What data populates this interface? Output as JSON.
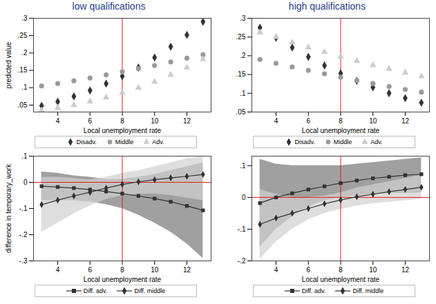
{
  "chart_data": [
    {
      "type": "scatter",
      "title": "low qualifications",
      "x_label": "Local unemployment rate",
      "y_label": "predicted value",
      "xlim": [
        2.5,
        13.5
      ],
      "xticks": [
        4,
        6,
        8,
        10,
        12
      ],
      "ylim": [
        0.03,
        0.3
      ],
      "yticks": [
        {
          "value": 0.05,
          "label": ".05"
        },
        {
          "value": 0.1,
          "label": ".1"
        },
        {
          "value": 0.15,
          "label": ".15"
        },
        {
          "value": 0.2,
          "label": ".2"
        },
        {
          "value": 0.25,
          "label": ".25"
        },
        {
          "value": 0.3,
          "label": ".3"
        }
      ],
      "vline": 8,
      "x": [
        3,
        4,
        5,
        6,
        7,
        8,
        9,
        10,
        11,
        12,
        13
      ],
      "series": [
        {
          "name": "Disadv.",
          "color": "#333333",
          "marker": "diamond",
          "values": [
            0.048,
            0.06,
            0.075,
            0.092,
            0.112,
            0.133,
            0.158,
            0.187,
            0.218,
            0.252,
            0.29
          ]
        },
        {
          "name": "Middle",
          "color": "#9a9a9a",
          "marker": "circle",
          "values": [
            0.105,
            0.112,
            0.12,
            0.128,
            0.137,
            0.146,
            0.155,
            0.164,
            0.174,
            0.185,
            0.195
          ]
        },
        {
          "name": "Adv.",
          "color": "#cccccc",
          "marker": "triangle",
          "values": [
            0.035,
            0.042,
            0.05,
            0.06,
            0.072,
            0.085,
            0.1,
            0.117,
            0.137,
            0.158,
            0.182
          ]
        }
      ]
    },
    {
      "type": "scatter",
      "title": "high qualifications",
      "x_label": "Local unemployment rate",
      "xlim": [
        2.5,
        13.5
      ],
      "xticks": [
        4,
        6,
        8,
        10,
        12
      ],
      "ylim": [
        0.05,
        0.3
      ],
      "yticks": [
        {
          "value": 0.05,
          "label": ".05"
        },
        {
          "value": 0.1,
          "label": ".1"
        },
        {
          "value": 0.15,
          "label": ".15"
        },
        {
          "value": 0.2,
          "label": ".2"
        },
        {
          "value": 0.25,
          "label": ".25"
        },
        {
          "value": 0.3,
          "label": ".3"
        }
      ],
      "vline": 8,
      "x": [
        3,
        4,
        5,
        6,
        7,
        8,
        9,
        10,
        11,
        12,
        13
      ],
      "series": [
        {
          "name": "Disadv.",
          "color": "#333333",
          "marker": "diamond",
          "values": [
            0.275,
            0.248,
            0.222,
            0.197,
            0.174,
            0.153,
            0.133,
            0.116,
            0.1,
            0.087,
            0.075
          ]
        },
        {
          "name": "Middle",
          "color": "#9a9a9a",
          "marker": "circle",
          "values": [
            0.19,
            0.18,
            0.17,
            0.161,
            0.152,
            0.143,
            0.134,
            0.126,
            0.118,
            0.11,
            0.103
          ]
        },
        {
          "name": "Adv.",
          "color": "#cccccc",
          "marker": "triangle",
          "values": [
            0.262,
            0.25,
            0.236,
            0.222,
            0.21,
            0.197,
            0.186,
            0.175,
            0.165,
            0.155,
            0.145
          ]
        }
      ]
    },
    {
      "type": "line",
      "x_label": "Local unemployment rate",
      "y_label": "difference in temporary_work",
      "xlim": [
        2.5,
        13.5
      ],
      "xticks": [
        4,
        6,
        8,
        10,
        12
      ],
      "ylim": [
        -0.3,
        0.1
      ],
      "yticks": [
        {
          "value": -0.3,
          "label": "-.3"
        },
        {
          "value": -0.2,
          "label": "-.2"
        },
        {
          "value": -0.1,
          "label": "-.1"
        },
        0,
        {
          "value": 0.1,
          "label": ".1"
        }
      ],
      "vline": 8,
      "hline": 0,
      "x": [
        3,
        4,
        5,
        6,
        7,
        8,
        9,
        10,
        11,
        12,
        13
      ],
      "series": [
        {
          "name": "Diff. adv.",
          "color": "#333333",
          "marker": "square",
          "band_color": "#777777",
          "values": [
            -0.015,
            -0.018,
            -0.022,
            -0.028,
            -0.035,
            -0.043,
            -0.052,
            -0.062,
            -0.074,
            -0.09,
            -0.107
          ],
          "lower": [
            -0.07,
            -0.07,
            -0.07,
            -0.075,
            -0.085,
            -0.1,
            -0.125,
            -0.155,
            -0.19,
            -0.235,
            -0.29
          ],
          "upper": [
            0.04,
            0.035,
            0.025,
            0.02,
            0.012,
            0.012,
            0.02,
            0.03,
            0.045,
            0.06,
            0.075
          ]
        },
        {
          "name": "Diff. middle",
          "color": "#333333",
          "marker": "diamond",
          "band_color": "#d0d0d0",
          "values": [
            -0.085,
            -0.068,
            -0.052,
            -0.038,
            -0.022,
            -0.008,
            0.002,
            0.01,
            0.017,
            0.023,
            0.03
          ],
          "lower": [
            -0.19,
            -0.155,
            -0.12,
            -0.09,
            -0.065,
            -0.05,
            -0.045,
            -0.045,
            -0.05,
            -0.06,
            -0.07
          ],
          "upper": [
            0.02,
            0.02,
            0.015,
            0.01,
            0.02,
            0.035,
            0.045,
            0.06,
            0.075,
            0.09,
            0.1
          ]
        }
      ]
    },
    {
      "type": "line",
      "x_label": "Local unemployment rate",
      "xlim": [
        2.5,
        13.5
      ],
      "xticks": [
        4,
        6,
        8,
        10,
        12
      ],
      "ylim": [
        -0.2,
        0.13
      ],
      "yticks": [
        {
          "value": -0.2,
          "label": "-.2"
        },
        {
          "value": -0.1,
          "label": "-.1"
        },
        0,
        {
          "value": 0.1,
          "label": ".1"
        }
      ],
      "vline": 8,
      "hline": 0,
      "x": [
        3,
        4,
        5,
        6,
        7,
        8,
        9,
        10,
        11,
        12,
        13
      ],
      "series": [
        {
          "name": "Diff. adv.",
          "color": "#333333",
          "marker": "square",
          "band_color": "#777777",
          "values": [
            -0.018,
            0.0,
            0.013,
            0.025,
            0.035,
            0.045,
            0.053,
            0.06,
            0.065,
            0.07,
            0.073
          ],
          "lower": [
            -0.155,
            -0.1,
            -0.06,
            -0.03,
            -0.01,
            0.0,
            0.005,
            0.01,
            0.012,
            0.013,
            0.015
          ],
          "upper": [
            0.12,
            0.105,
            0.1,
            0.1,
            0.1,
            0.1,
            0.105,
            0.11,
            0.115,
            0.12,
            0.125
          ]
        },
        {
          "name": "Diff. middle",
          "color": "#333333",
          "marker": "diamond",
          "band_color": "#d0d0d0",
          "values": [
            -0.085,
            -0.065,
            -0.05,
            -0.035,
            -0.02,
            -0.008,
            0.002,
            0.01,
            0.018,
            0.025,
            0.032
          ],
          "lower": [
            -0.195,
            -0.14,
            -0.1,
            -0.07,
            -0.05,
            -0.037,
            -0.027,
            -0.02,
            -0.015,
            -0.01,
            -0.005
          ],
          "upper": [
            0.025,
            0.01,
            0.0,
            0.0,
            0.005,
            0.015,
            0.03,
            0.04,
            0.05,
            0.06,
            0.07
          ]
        }
      ]
    }
  ]
}
